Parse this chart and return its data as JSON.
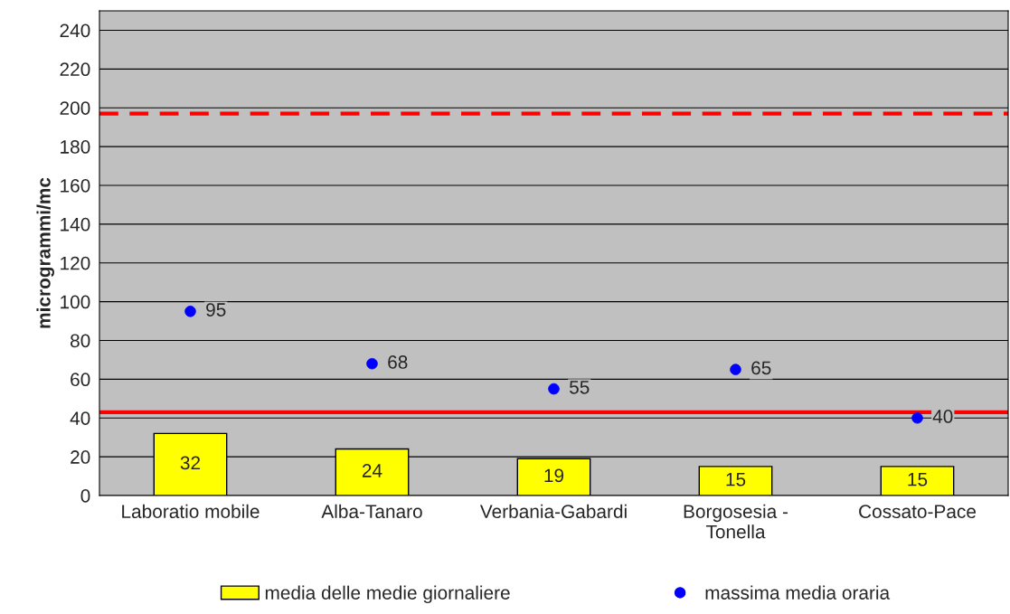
{
  "chart_data": {
    "type": "bar",
    "ylabel": "microgrammi/mc",
    "categories": [
      "Laboratio mobile",
      "Alba-Tanaro",
      "Verbania-Gabardi",
      "Borgosesia -\nTonella",
      "Cossato-Pace"
    ],
    "series": [
      {
        "name": "media delle medie giornaliere",
        "color": "#ffff00",
        "values": [
          32,
          24,
          19,
          15,
          15
        ]
      },
      {
        "name": "massima media oraria",
        "type": "scatter",
        "color": "#0000ff",
        "values": [
          95,
          68,
          55,
          65,
          40
        ]
      }
    ],
    "ylim": [
      0,
      250
    ],
    "yticks": [
      0,
      20,
      40,
      60,
      80,
      100,
      120,
      140,
      160,
      180,
      200,
      220,
      240
    ],
    "ref_lines": [
      {
        "axis": "y",
        "value": 197,
        "color": "#ff0000",
        "line_style": "dashed"
      },
      {
        "axis": "y",
        "value": 43,
        "color": "#ff0000",
        "line_style": "solid"
      }
    ],
    "data_labels": true,
    "grid": "y",
    "legend": "bottom",
    "marker": "circle"
  }
}
